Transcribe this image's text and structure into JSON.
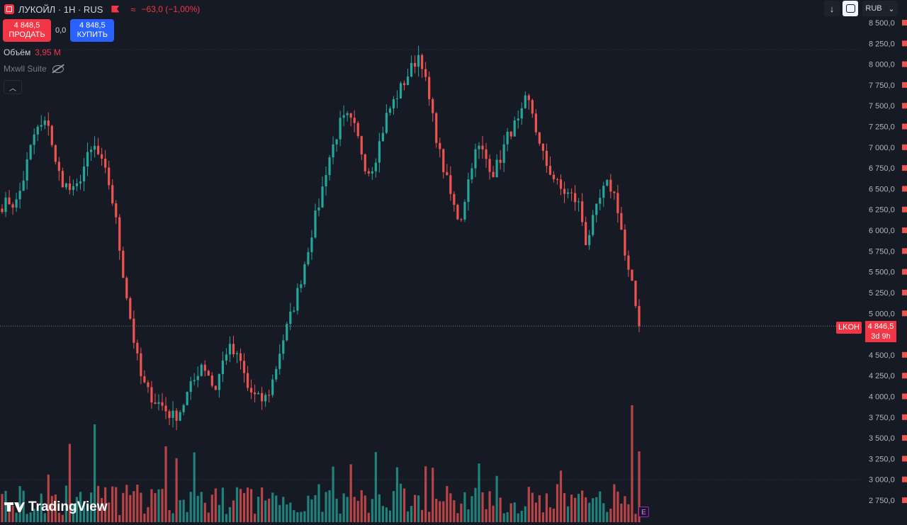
{
  "header": {
    "title": "ЛУКОЙЛ · 1H · RUS",
    "change": "−63,0 (−1,00%)",
    "sell_price": "4 848,5",
    "sell_label": "ПРОДАТЬ",
    "spread": "0,0",
    "buy_price": "4 848,5",
    "buy_label": "КУПИТЬ"
  },
  "volume_legend": {
    "label": "Объём",
    "value": "3,95 M"
  },
  "indicator_legend": {
    "name": "Mxwll Suite"
  },
  "toolbar": {
    "currency": "RUB",
    "arrow": "↓",
    "chevron": "⌄"
  },
  "last_price": {
    "symbol": "LKOH",
    "value": "4 846,5",
    "countdown": "3d 9h"
  },
  "branding": {
    "logo_text": "TradingView",
    "earnings_marker": "E"
  },
  "colors": {
    "background": "#161a25",
    "up": "#26a69a",
    "down": "#ef5350",
    "accent": "#f23645",
    "buy": "#2962ff"
  },
  "chart_data": {
    "type": "candlestick",
    "symbol": "ЛУКОЙЛ",
    "interval": "1H",
    "currency": "RUB",
    "y_ticks": [
      "8 500,0",
      "8 250,0",
      "8 000,0",
      "7 750,0",
      "7 500,0",
      "7 250,0",
      "7 000,0",
      "6 750,0",
      "6 500,0",
      "6 250,0",
      "6 000,0",
      "5 750,0",
      "5 500,0",
      "5 250,0",
      "5 000,0",
      "4 500,0",
      "4 250,0",
      "4 000,0",
      "3 750,0",
      "3 500,0",
      "3 250,0",
      "3 000,0",
      "2 750,0"
    ],
    "ylim": [
      2650,
      8580
    ],
    "close_path": [
      6300,
      6350,
      6300,
      6550,
      6900,
      7200,
      7250,
      7300,
      6800,
      6600,
      6500,
      6450,
      6700,
      6900,
      7000,
      6800,
      6600,
      6200,
      5600,
      5100,
      4600,
      4200,
      4050,
      3950,
      3900,
      3800,
      3750,
      3850,
      4050,
      4200,
      4400,
      4300,
      4050,
      4350,
      4600,
      4500,
      4400,
      4100,
      4000,
      3950,
      4000,
      4250,
      4600,
      4850,
      5100,
      5400,
      5750,
      6100,
      6400,
      6800,
      7050,
      7300,
      7350,
      7250,
      7000,
      6700,
      6800,
      7100,
      7400,
      7550,
      7700,
      7850,
      8000,
      8150,
      7700,
      7300,
      6900,
      6600,
      6300,
      6100,
      6500,
      6900,
      7000,
      6850,
      6700,
      6850,
      7100,
      7250,
      7300,
      7600,
      7400,
      7000,
      6800,
      6650,
      6500,
      6450,
      6400,
      6300,
      5850,
      6100,
      6350,
      6550,
      6500,
      6200,
      5600,
      5300,
      4850
    ],
    "last_close": 4846.5,
    "grid": false
  }
}
